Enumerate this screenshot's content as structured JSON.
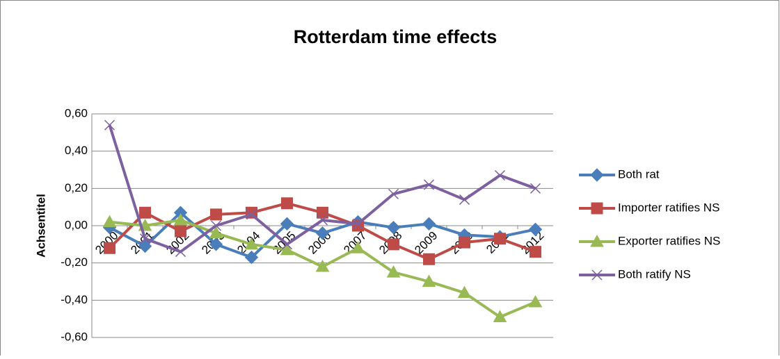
{
  "chart_data": {
    "type": "line",
    "title": "Rotterdam time effects",
    "y_label": "Achsentitel",
    "categories": [
      "2000",
      "2001",
      "2002",
      "2003",
      "2004",
      "2005",
      "2006",
      "2007",
      "2008",
      "2009",
      "2010",
      "2011",
      "2012"
    ],
    "series": [
      {
        "name": "Both rat",
        "color": "#4a7ebb",
        "marker": "diamond",
        "values": [
          -0.01,
          -0.11,
          0.07,
          -0.1,
          -0.17,
          0.01,
          -0.04,
          0.02,
          -0.01,
          0.01,
          -0.05,
          -0.06,
          -0.02
        ]
      },
      {
        "name": "Importer ratifies NS",
        "color": "#be4b48",
        "marker": "square",
        "values": [
          -0.12,
          0.07,
          -0.03,
          0.06,
          0.07,
          0.12,
          0.07,
          0.0,
          -0.1,
          -0.18,
          -0.09,
          -0.07,
          -0.14
        ]
      },
      {
        "name": "Exporter ratifies NS",
        "color": "#98b954",
        "marker": "triangle",
        "values": [
          0.02,
          0.0,
          0.03,
          -0.04,
          -0.1,
          -0.13,
          -0.22,
          -0.12,
          -0.25,
          -0.3,
          -0.36,
          -0.49,
          -0.41
        ]
      },
      {
        "name": "Both ratify NS",
        "color": "#7d60a0",
        "marker": "x",
        "values": [
          0.54,
          -0.07,
          -0.14,
          0.0,
          0.06,
          -0.1,
          0.03,
          0.01,
          0.17,
          0.22,
          0.14,
          0.27,
          0.2
        ]
      }
    ],
    "ylim": [
      -0.6,
      0.6
    ],
    "yticks": [
      {
        "value": 0.6,
        "label": "0,60"
      },
      {
        "value": 0.4,
        "label": "0,40"
      },
      {
        "value": 0.2,
        "label": "0,20"
      },
      {
        "value": 0,
        "label": "0,00"
      },
      {
        "value": -0.2,
        "label": "-0,20"
      },
      {
        "value": -0.4,
        "label": "-0,40"
      },
      {
        "value": -0.6,
        "label": "-0,60"
      }
    ],
    "grid": true,
    "legend": "right"
  }
}
